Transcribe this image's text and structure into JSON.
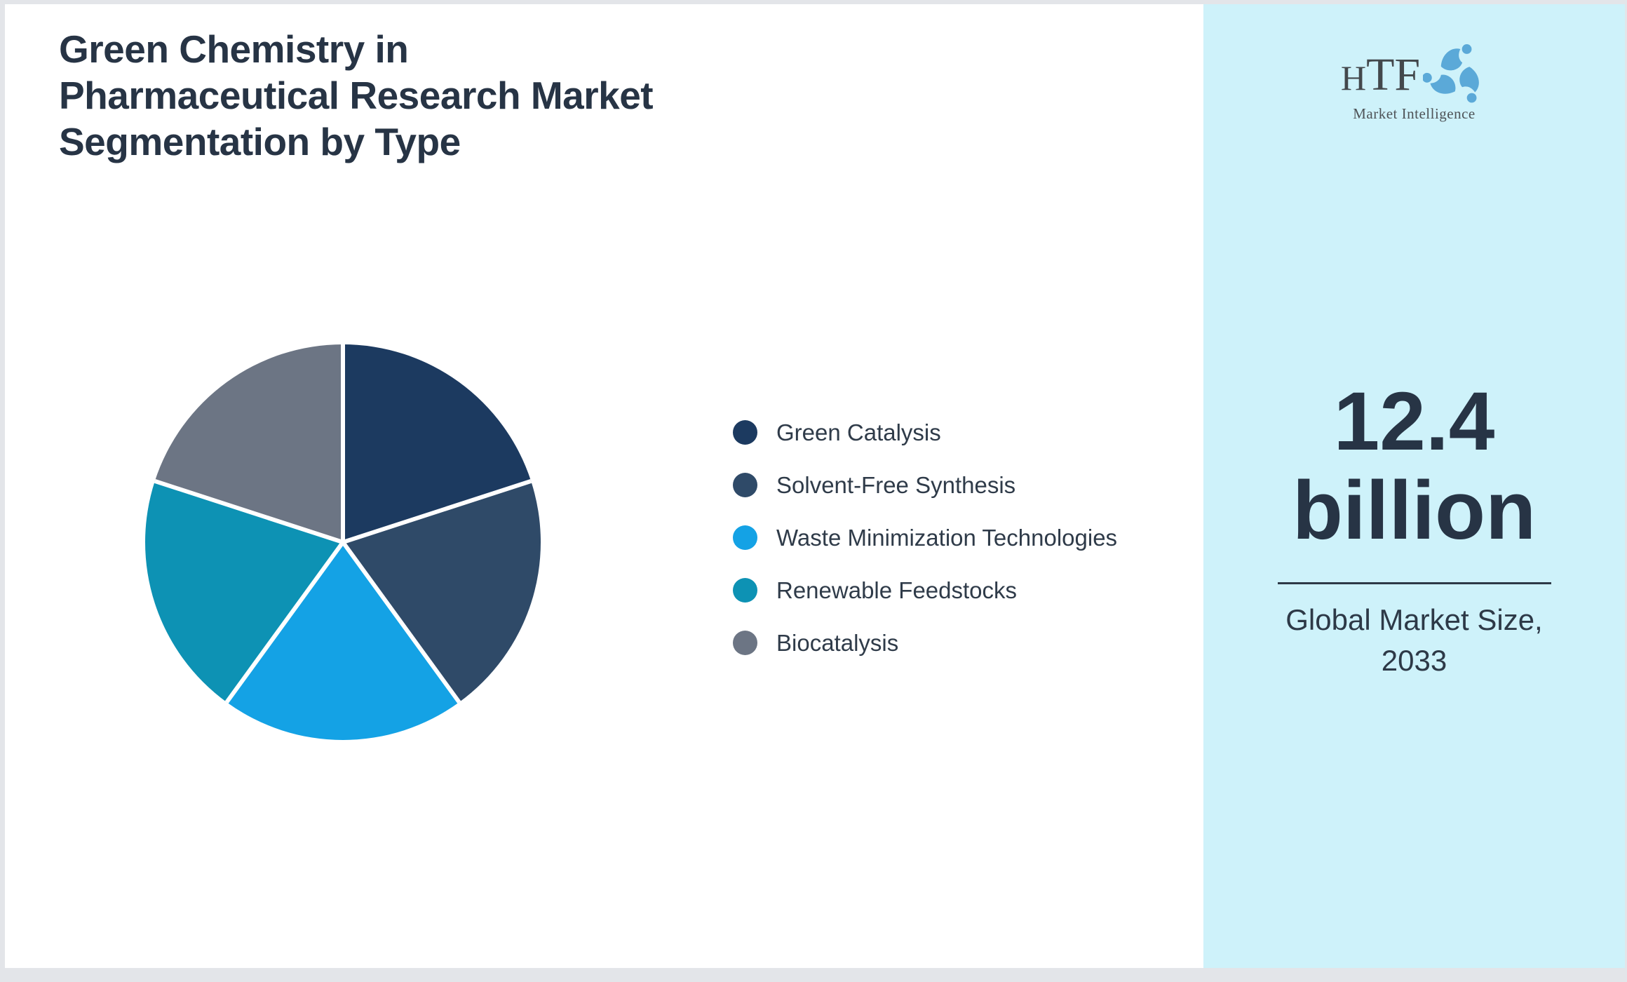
{
  "page": {
    "background": "#ffffff",
    "border_color": "#e3e5e9"
  },
  "header": {
    "title_lines": [
      "Green Chemistry in",
      "Pharmaceutical Research Market",
      "Segmentation by Type"
    ],
    "title_color": "#273445"
  },
  "logo": {
    "brand": "HTF",
    "tagline": "Market Intelligence"
  },
  "chart_data": {
    "type": "pie",
    "title": "Green Chemistry in Pharmaceutical Research Market Segmentation by Type",
    "segments": [
      {
        "label": "Green Catalysis",
        "value": 20,
        "color": "#1c3a60"
      },
      {
        "label": "Solvent-Free Synthesis",
        "value": 20,
        "color": "#2f4a68"
      },
      {
        "label": "Waste Minimization Technologies",
        "value": 20,
        "color": "#14a2e5"
      },
      {
        "label": "Renewable Feedstocks",
        "value": 20,
        "color": "#0d92b4"
      },
      {
        "label": "Biocatalysis",
        "value": 20,
        "color": "#6c7584"
      }
    ],
    "start_angle_deg": 0,
    "direction": "clockwise",
    "legend_position": "right",
    "slice_gap_color": "#ffffff",
    "labels_shown": false
  },
  "stat_panel": {
    "background": "#cef2fa",
    "value_lines": [
      "12.4",
      "billion"
    ],
    "caption_lines": [
      "Global Market Size,",
      "2033"
    ],
    "text_color": "#273445",
    "divider_color": "#2d3947"
  }
}
